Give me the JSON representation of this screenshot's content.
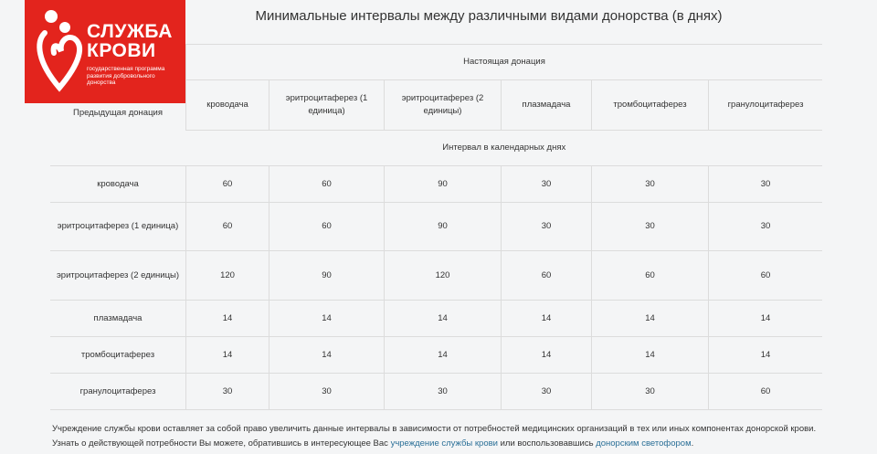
{
  "logo": {
    "title_line1": "СЛУЖБА",
    "title_line2": "КРОВИ",
    "subtitle": "государственная программа развития добровольного донорства",
    "color": "#e3241d"
  },
  "title": "Минимальные интервалы между различными видами донорства (в днях)",
  "table": {
    "current_header": "Настоящая донация",
    "previous_header": "Предыдущая донация",
    "interval_header": "Интервал в календарных днях",
    "columns": [
      "кроводача",
      "эритроцитаферез (1 единица)",
      "эритроцитаферез (2 единицы)",
      "плазмадача",
      "тромбоцитаферез",
      "гранулоцитаферез"
    ],
    "rows": [
      {
        "label": "кроводача",
        "values": [
          "60",
          "60",
          "90",
          "30",
          "30",
          "30"
        ]
      },
      {
        "label": "эритроцитаферез (1 единица)",
        "values": [
          "60",
          "60",
          "90",
          "30",
          "30",
          "30"
        ]
      },
      {
        "label": "эритроцитаферез (2 единицы)",
        "values": [
          "120",
          "90",
          "120",
          "60",
          "60",
          "60"
        ]
      },
      {
        "label": "плазмадача",
        "values": [
          "14",
          "14",
          "14",
          "14",
          "14",
          "14"
        ]
      },
      {
        "label": "тромбоцитаферез",
        "values": [
          "14",
          "14",
          "14",
          "14",
          "14",
          "14"
        ]
      },
      {
        "label": "гранулоцитаферез",
        "values": [
          "30",
          "30",
          "30",
          "30",
          "30",
          "60"
        ]
      }
    ]
  },
  "footer": {
    "text1": "Учреждение службы крови оставляет за собой право увеличить данные интервалы в зависимости от потребностей медицинских организаций в тех или иных компонентах донорской крови. Узнать о действующей потребности Вы можете, обратившись в интересующее Вас ",
    "link1": "учреждение службы крови",
    "text2": " или воспользовавшись ",
    "link2": "донорским светофором",
    "text3": ".",
    "link_color": "#2a6f97"
  }
}
